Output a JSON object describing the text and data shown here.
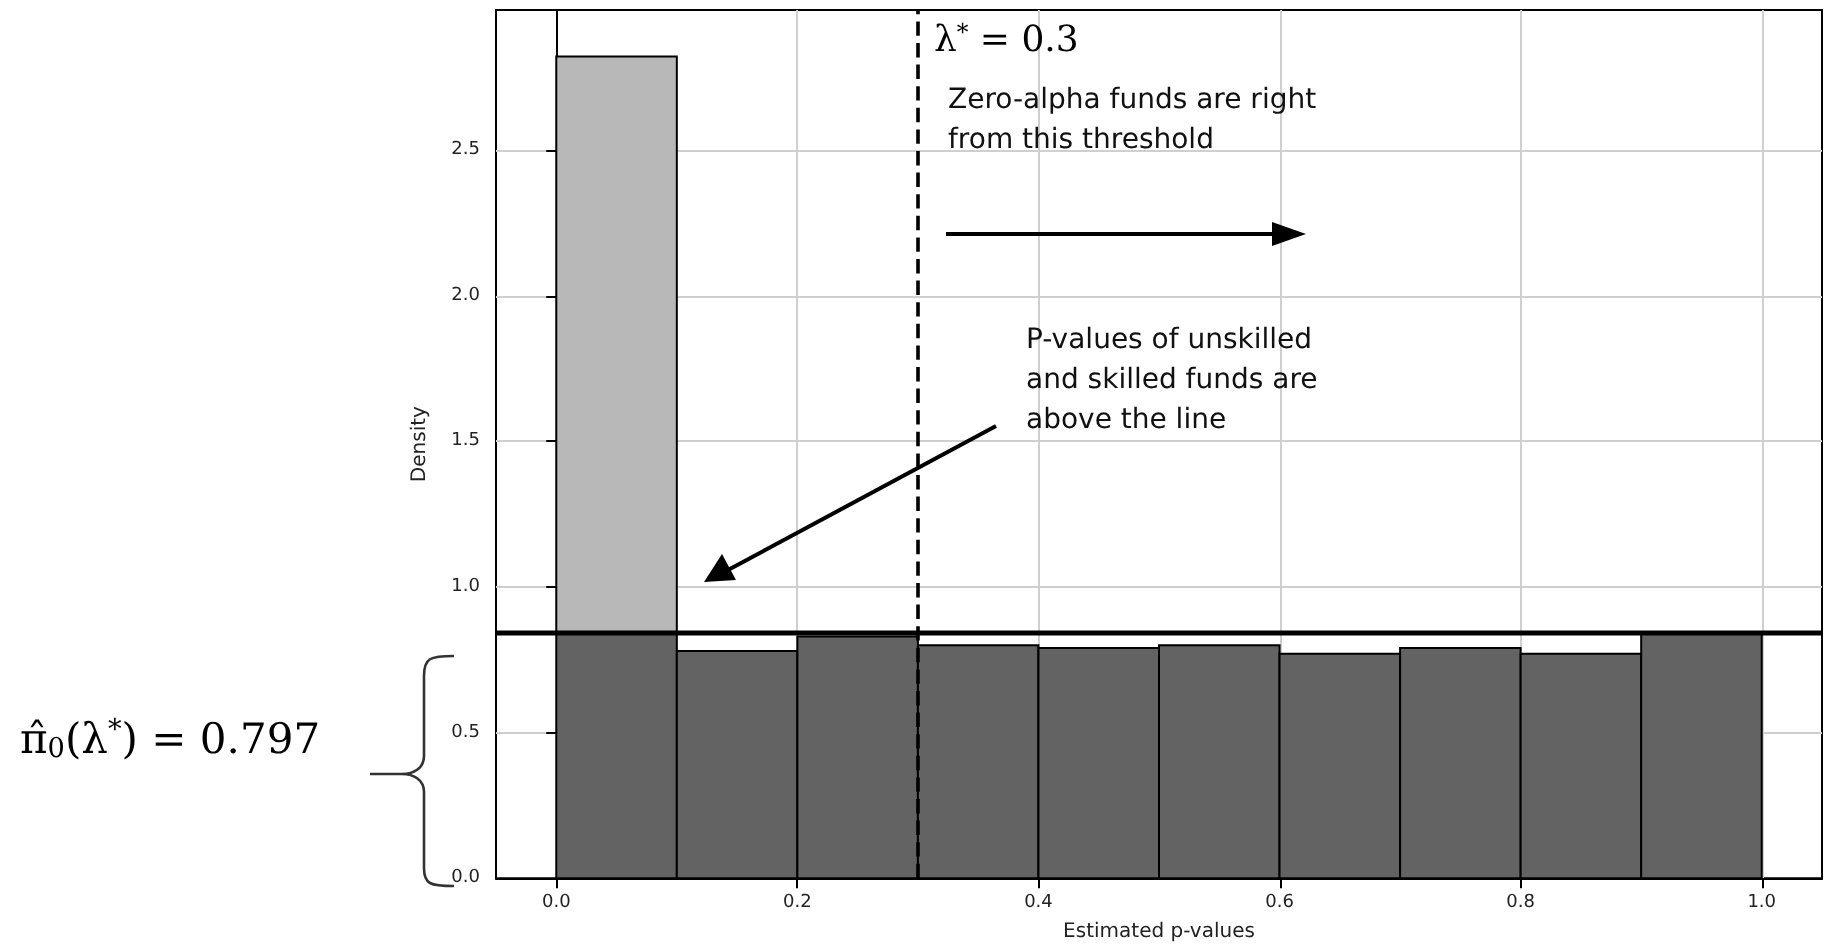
{
  "chart_data": {
    "type": "histogram",
    "xlabel": "Estimated p-values",
    "ylabel": "Density",
    "bins": [
      0.0,
      0.1,
      0.2,
      0.3,
      0.4,
      0.5,
      0.6,
      0.7,
      0.8,
      0.9,
      1.0
    ],
    "series": [
      {
        "color": "#636363",
        "values": [
          0.84,
          0.78,
          0.83,
          0.8,
          0.79,
          0.8,
          0.77,
          0.79,
          0.77,
          0.84
        ]
      },
      {
        "color": "#b8b8b8",
        "values": [
          1.98,
          null,
          null,
          null,
          null,
          null,
          null,
          null,
          null,
          null
        ],
        "base": [
          0.84,
          null,
          null,
          null,
          null,
          null,
          null,
          null,
          null,
          null
        ]
      }
    ],
    "xlim": [
      -0.05,
      1.05
    ],
    "ylim": [
      0,
      2.98
    ],
    "xticks": [
      {
        "value": 0,
        "label": "0.0"
      },
      0.2,
      0.4,
      0.6,
      0.8,
      {
        "value": 1,
        "label": "1.0"
      }
    ],
    "yticks": [
      {
        "value": 0,
        "label": "0.0"
      },
      0.5,
      {
        "value": 1,
        "label": "1.0"
      },
      1.5,
      {
        "value": 2,
        "label": "2.0"
      },
      2.5
    ],
    "grid": true,
    "ref_lines": [
      {
        "axis": "x",
        "value": 0.3,
        "label": "λ$^{*}$ = 0.3",
        "color": "#000000",
        "line_style": "dashed"
      },
      {
        "axis": "y",
        "value": 0.84,
        "color": "#000000",
        "line_style": "solid"
      }
    ],
    "annotations": [
      "Zero-alpha funds are right from this threshold",
      "P-values of unskilled and skilled funds are above the line",
      "π̂$_{0}$(λ$^{*}$) = 0.797"
    ]
  }
}
